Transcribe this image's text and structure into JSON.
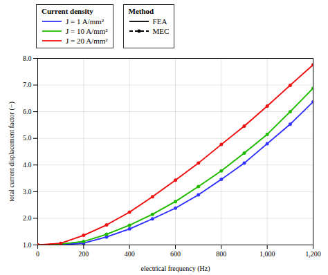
{
  "chart_data": {
    "type": "line",
    "xlabel": "electrical frequency (Hz)",
    "ylabel": "total current displacement factor (−)",
    "x": [
      0,
      100,
      200,
      300,
      400,
      500,
      600,
      700,
      800,
      900,
      1000,
      1100,
      1200
    ],
    "xlim": [
      0,
      1200
    ],
    "xticks": [
      0,
      200,
      400,
      600,
      800,
      1000,
      1200
    ],
    "ylim": [
      1,
      8
    ],
    "yticks": [
      1,
      2,
      3,
      4,
      5,
      6,
      7,
      8
    ],
    "grid": true,
    "legend": "upper left",
    "legend_titles": [
      "Current density",
      "Method"
    ],
    "series": [
      {
        "name": "J = 1 A/mm²",
        "method": "FEA",
        "color": "#3333ff",
        "line_style": "solid",
        "values": [
          1.0,
          1.015,
          1.065,
          1.3,
          1.6,
          1.98,
          2.38,
          2.88,
          3.46,
          4.07,
          4.8,
          5.53,
          6.37
        ]
      },
      {
        "name": "J = 10 A/mm²",
        "method": "FEA",
        "color": "#22bb00",
        "line_style": "solid",
        "values": [
          1.0,
          1.03,
          1.13,
          1.4,
          1.74,
          2.15,
          2.63,
          3.19,
          3.78,
          4.45,
          5.15,
          6.0,
          6.88
        ]
      },
      {
        "name": "J = 20 A/mm²",
        "method": "FEA",
        "color": "#ee1111",
        "line_style": "solid",
        "values": [
          1.0,
          1.06,
          1.36,
          1.75,
          2.23,
          2.81,
          3.43,
          4.07,
          4.77,
          5.46,
          6.21,
          6.99,
          7.76
        ]
      },
      {
        "name": "J = 1 A/mm²",
        "method": "MEC",
        "color": "#3333ff",
        "line_style": "dashed",
        "marker": "circle",
        "values": [
          1.0,
          1.015,
          1.065,
          1.3,
          1.6,
          1.98,
          2.38,
          2.88,
          3.46,
          4.07,
          4.8,
          5.53,
          6.37
        ]
      },
      {
        "name": "J = 10 A/mm²",
        "method": "MEC",
        "color": "#22bb00",
        "line_style": "dashed",
        "marker": "circle",
        "values": [
          1.0,
          1.03,
          1.13,
          1.4,
          1.74,
          2.15,
          2.63,
          3.19,
          3.78,
          4.45,
          5.15,
          6.0,
          6.88
        ]
      },
      {
        "name": "J = 20 A/mm²",
        "method": "MEC",
        "color": "#ee1111",
        "line_style": "dashed",
        "marker": "circle",
        "values": [
          1.0,
          1.06,
          1.36,
          1.75,
          2.23,
          2.81,
          3.43,
          4.07,
          4.77,
          5.46,
          6.21,
          6.99,
          7.76
        ]
      }
    ]
  }
}
